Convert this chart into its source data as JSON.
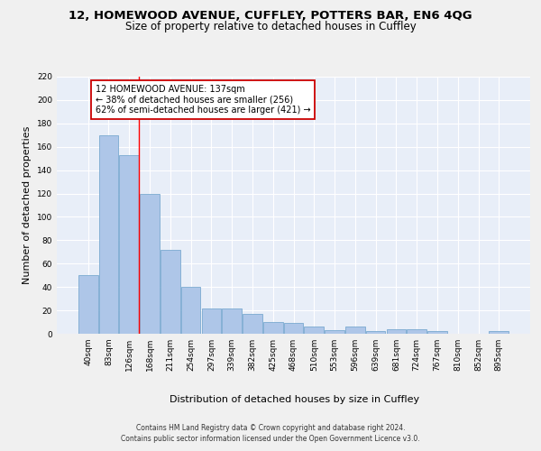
{
  "title1": "12, HOMEWOOD AVENUE, CUFFLEY, POTTERS BAR, EN6 4QG",
  "title2": "Size of property relative to detached houses in Cuffley",
  "xlabel": "Distribution of detached houses by size in Cuffley",
  "ylabel": "Number of detached properties",
  "categories": [
    "40sqm",
    "83sqm",
    "126sqm",
    "168sqm",
    "211sqm",
    "254sqm",
    "297sqm",
    "339sqm",
    "382sqm",
    "425sqm",
    "468sqm",
    "510sqm",
    "553sqm",
    "596sqm",
    "639sqm",
    "681sqm",
    "724sqm",
    "767sqm",
    "810sqm",
    "852sqm",
    "895sqm"
  ],
  "values": [
    50,
    170,
    153,
    120,
    72,
    40,
    22,
    22,
    17,
    10,
    9,
    6,
    3,
    6,
    2,
    4,
    4,
    2,
    0,
    0,
    2
  ],
  "bar_color": "#aec6e8",
  "bar_edge_color": "#7aaad0",
  "background_color": "#e8eef8",
  "grid_color": "#ffffff",
  "annotation_text": "12 HOMEWOOD AVENUE: 137sqm\n← 38% of detached houses are smaller (256)\n62% of semi-detached houses are larger (421) →",
  "annotation_box_color": "#ffffff",
  "annotation_box_edge": "#cc0000",
  "redline_x": 2.47,
  "ylim": [
    0,
    220
  ],
  "yticks": [
    0,
    20,
    40,
    60,
    80,
    100,
    120,
    140,
    160,
    180,
    200,
    220
  ],
  "footer": "Contains HM Land Registry data © Crown copyright and database right 2024.\nContains public sector information licensed under the Open Government Licence v3.0.",
  "title_fontsize": 9.5,
  "subtitle_fontsize": 8.5,
  "tick_fontsize": 6.5,
  "ylabel_fontsize": 8,
  "xlabel_fontsize": 8,
  "annotation_fontsize": 7,
  "footer_fontsize": 5.5,
  "fig_bg": "#f0f0f0"
}
